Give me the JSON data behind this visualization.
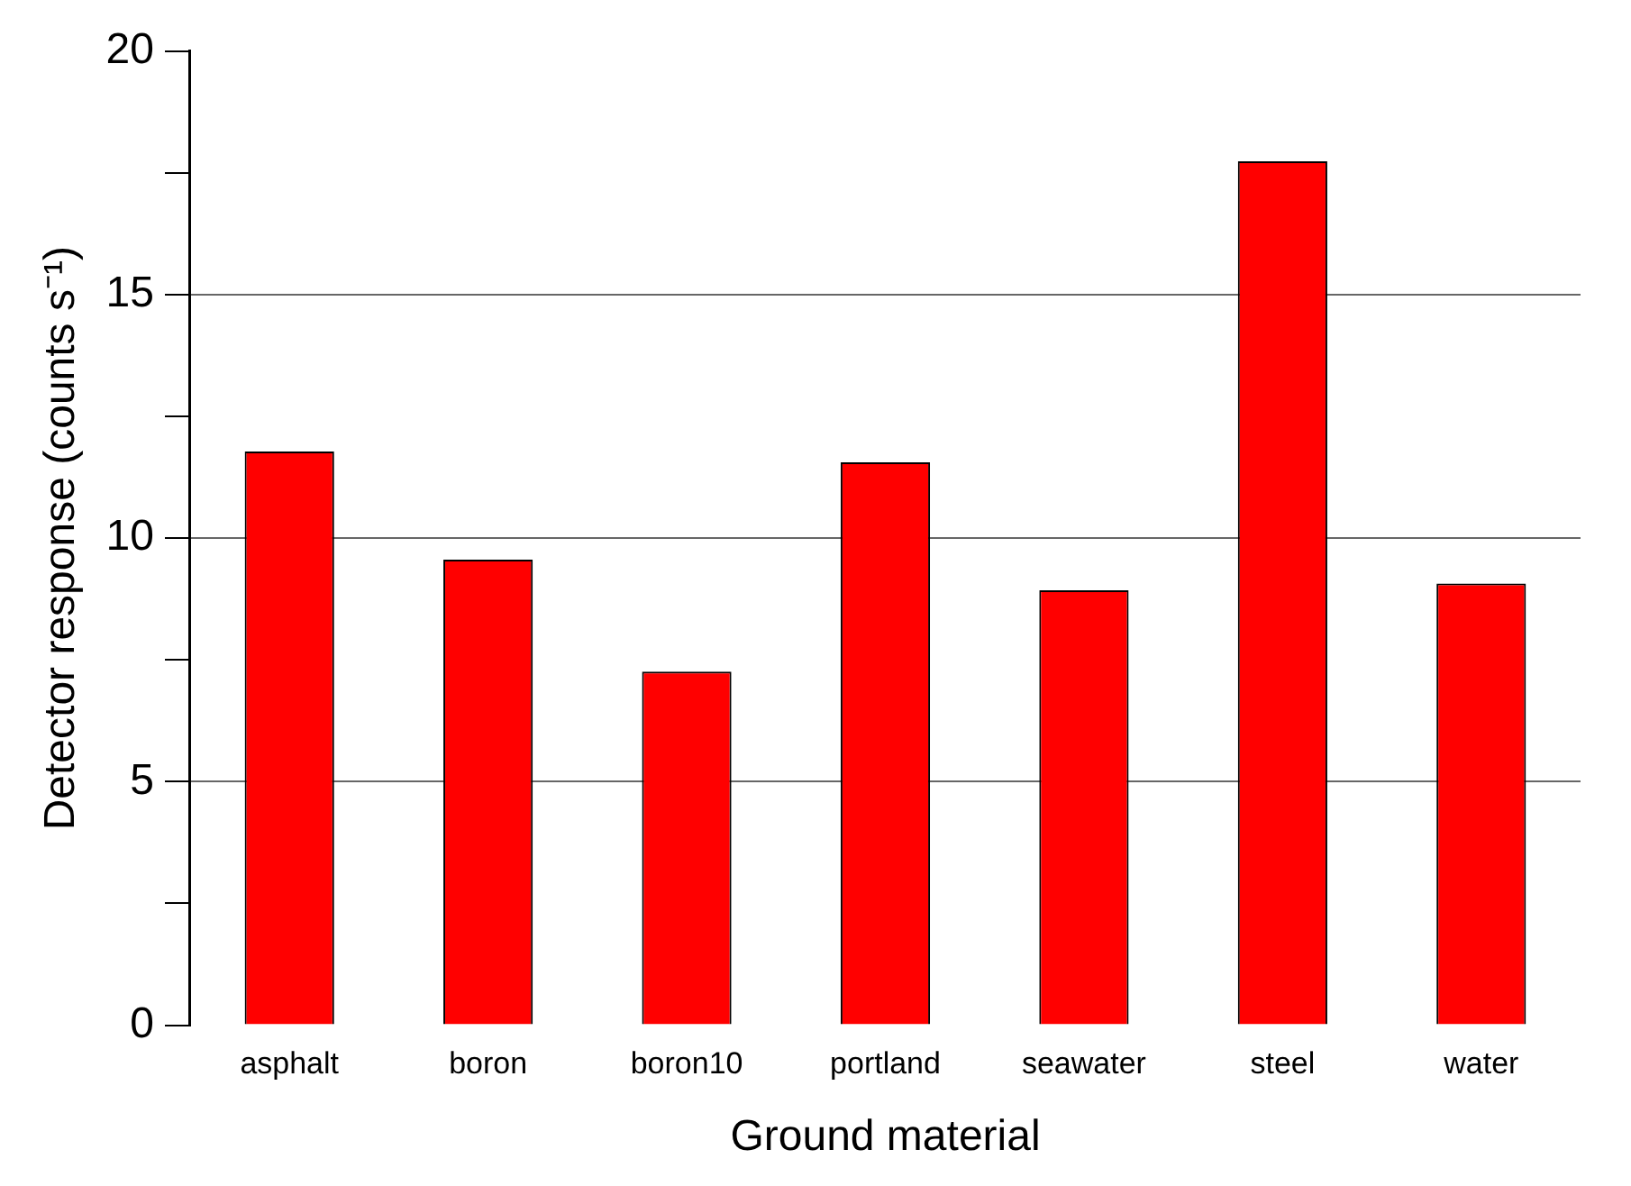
{
  "chart_data": {
    "type": "bar",
    "xlabel": "Ground material",
    "ylabel": "Detector response (counts s⁻¹)",
    "categories": [
      "asphalt",
      "boron",
      "boron10",
      "portland",
      "seawater",
      "steel",
      "water"
    ],
    "values": [
      11.78,
      9.56,
      7.26,
      11.56,
      8.93,
      17.74,
      9.07
    ],
    "color": "#ff0000",
    "ylim": [
      0,
      20
    ],
    "yticks": [
      0,
      {
        "value": 2.5,
        "label": null
      },
      5,
      {
        "value": 7.5,
        "label": null
      },
      10,
      {
        "value": 12.5,
        "label": null
      },
      15,
      {
        "value": 17.5,
        "label": null
      },
      20
    ],
    "grid": "y"
  }
}
